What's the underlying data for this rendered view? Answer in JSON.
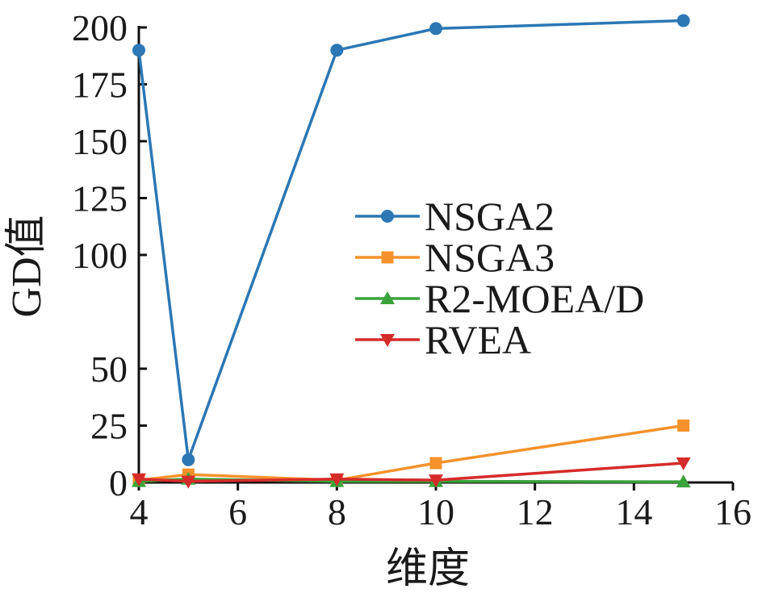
{
  "chart_data": {
    "type": "line",
    "xlabel": "维度",
    "ylabel": "GD值",
    "xlim": [
      4,
      16
    ],
    "ylim": [
      0,
      200
    ],
    "xticks": [
      4,
      6,
      8,
      10,
      12,
      14,
      16
    ],
    "yticks": [
      0,
      25,
      50,
      100,
      125,
      150,
      175,
      200
    ],
    "legend_position": "center-right",
    "grid": false,
    "series": [
      {
        "name": "NSGA2",
        "color": "#2c77b4",
        "marker": "circle",
        "x": [
          4,
          5,
          8,
          10,
          15
        ],
        "y": [
          190,
          10,
          190,
          199.5,
          203
        ]
      },
      {
        "name": "NSGA3",
        "color": "#f5922c",
        "marker": "square",
        "x": [
          4,
          5,
          8,
          10,
          15
        ],
        "y": [
          1,
          3.5,
          1,
          8.5,
          25
        ]
      },
      {
        "name": "R2-MOEA/D",
        "color": "#3ba33b",
        "marker": "triangle-up",
        "x": [
          4,
          5,
          8,
          10,
          15
        ],
        "y": [
          0.5,
          1.5,
          0.5,
          0.5,
          0.3
        ]
      },
      {
        "name": "RVEA",
        "color": "#d62b2b",
        "marker": "triangle-down",
        "x": [
          4,
          5,
          8,
          10,
          15
        ],
        "y": [
          1.5,
          0.5,
          1.5,
          1,
          8.5
        ]
      }
    ]
  }
}
